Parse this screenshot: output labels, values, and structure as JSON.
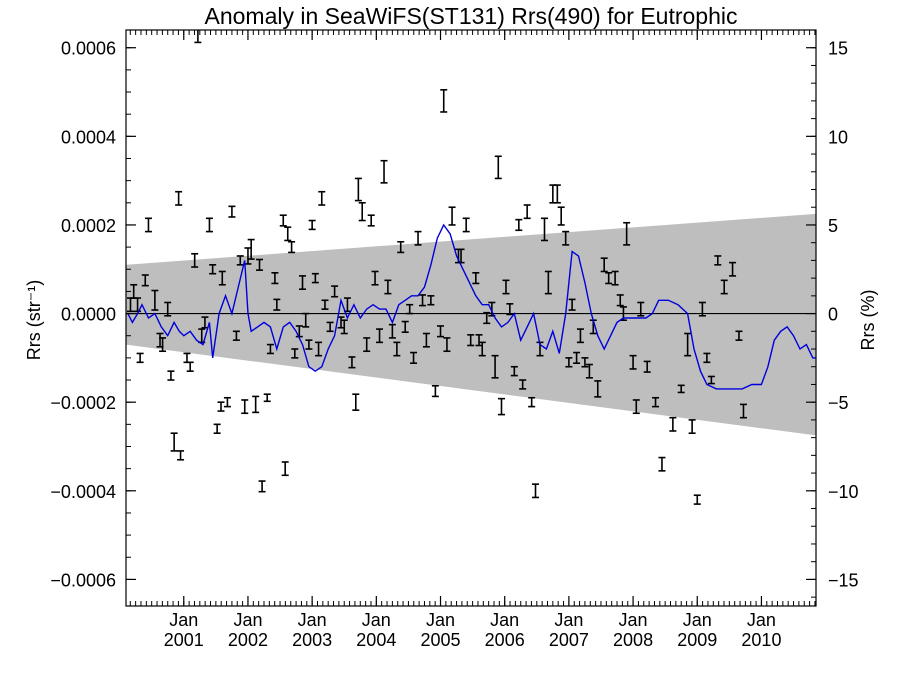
{
  "chart_data": {
    "type": "scatter",
    "title": "Anomaly in SeaWiFS(ST131) Rrs(490) for Eutrophic",
    "ylabel_left": "Rrs (str⁻¹)",
    "ylabel_right": "Rrs (%)",
    "xlim": [
      2000.1,
      2010.85
    ],
    "ylim": [
      -0.00066,
      0.00064
    ],
    "ylim_right_percent": [
      -16.5,
      16.0
    ],
    "y_ticks_left": [
      {
        "value": -0.0006,
        "label": "−0.0006"
      },
      {
        "value": -0.0004,
        "label": "−0.0004"
      },
      {
        "value": -0.0002,
        "label": "−0.0002"
      },
      {
        "value": 0,
        "label": "0.0000"
      },
      {
        "value": 0.0002,
        "label": "0.0002"
      },
      {
        "value": 0.0004,
        "label": "0.0004"
      },
      {
        "value": 0.0006,
        "label": "0.0006"
      }
    ],
    "y_ticks_right": [
      {
        "value": -15,
        "label": "−15"
      },
      {
        "value": -10,
        "label": "−10"
      },
      {
        "value": -5,
        "label": "−5"
      },
      {
        "value": 0,
        "label": "0"
      },
      {
        "value": 5,
        "label": "5"
      },
      {
        "value": 10,
        "label": "10"
      },
      {
        "value": 15,
        "label": "15"
      }
    ],
    "x_ticks": [
      {
        "value": 2001.0,
        "top": "Jan",
        "bottom": "2001"
      },
      {
        "value": 2002.0,
        "top": "Jan",
        "bottom": "2002"
      },
      {
        "value": 2003.0,
        "top": "Jan",
        "bottom": "2003"
      },
      {
        "value": 2004.0,
        "top": "Jan",
        "bottom": "2004"
      },
      {
        "value": 2005.0,
        "top": "Jan",
        "bottom": "2005"
      },
      {
        "value": 2006.0,
        "top": "Jan",
        "bottom": "2006"
      },
      {
        "value": 2007.0,
        "top": "Jan",
        "bottom": "2007"
      },
      {
        "value": 2008.0,
        "top": "Jan",
        "bottom": "2008"
      },
      {
        "value": 2009.0,
        "top": "Jan",
        "bottom": "2009"
      },
      {
        "value": 2010.0,
        "top": "Jan",
        "bottom": "2010"
      }
    ],
    "envelope": {
      "upper": [
        [
          2000.1,
          0.00011
        ],
        [
          2010.85,
          0.000225
        ]
      ],
      "lower": [
        [
          2000.1,
          -7e-05
        ],
        [
          2010.85,
          -0.000275
        ]
      ],
      "color": "#bebebe"
    },
    "zero_line": 0,
    "smoothed_line": {
      "color": "#0000dd",
      "points": [
        [
          2000.13,
          0.0
        ],
        [
          2000.2,
          -2e-05
        ],
        [
          2000.28,
          0.0
        ],
        [
          2000.35,
          2e-05
        ],
        [
          2000.45,
          -1e-05
        ],
        [
          2000.55,
          0.0
        ],
        [
          2000.65,
          -3e-05
        ],
        [
          2000.75,
          -5e-05
        ],
        [
          2000.85,
          -2e-05
        ],
        [
          2000.93,
          -4e-05
        ],
        [
          2001.0,
          -5e-05
        ],
        [
          2001.1,
          -4e-05
        ],
        [
          2001.2,
          -6e-05
        ],
        [
          2001.3,
          -7e-05
        ],
        [
          2001.4,
          -2e-05
        ],
        [
          2001.45,
          -0.0001
        ],
        [
          2001.55,
          0.0
        ],
        [
          2001.65,
          4e-05
        ],
        [
          2001.75,
          0.0
        ],
        [
          2001.85,
          6e-05
        ],
        [
          2001.95,
          0.00012
        ],
        [
          2002.0,
          0.0
        ],
        [
          2002.05,
          -4e-05
        ],
        [
          2002.15,
          -3e-05
        ],
        [
          2002.25,
          -2e-05
        ],
        [
          2002.35,
          -3e-05
        ],
        [
          2002.45,
          -8e-05
        ],
        [
          2002.55,
          -3e-05
        ],
        [
          2002.65,
          -2e-05
        ],
        [
          2002.75,
          -4e-05
        ],
        [
          2002.85,
          -7e-05
        ],
        [
          2002.95,
          -0.00012
        ],
        [
          2003.05,
          -0.00013
        ],
        [
          2003.15,
          -0.00012
        ],
        [
          2003.25,
          -8e-05
        ],
        [
          2003.35,
          -5e-05
        ],
        [
          2003.45,
          3e-05
        ],
        [
          2003.55,
          -1e-05
        ],
        [
          2003.65,
          2e-05
        ],
        [
          2003.75,
          -1e-05
        ],
        [
          2003.85,
          1e-05
        ],
        [
          2003.95,
          2e-05
        ],
        [
          2004.05,
          1e-05
        ],
        [
          2004.15,
          1e-05
        ],
        [
          2004.25,
          -2e-05
        ],
        [
          2004.35,
          2e-05
        ],
        [
          2004.45,
          3e-05
        ],
        [
          2004.55,
          4e-05
        ],
        [
          2004.65,
          4e-05
        ],
        [
          2004.75,
          6e-05
        ],
        [
          2004.85,
          0.00011
        ],
        [
          2004.95,
          0.00017
        ],
        [
          2005.05,
          0.0002
        ],
        [
          2005.15,
          0.00018
        ],
        [
          2005.25,
          0.00013
        ],
        [
          2005.35,
          0.0001
        ],
        [
          2005.45,
          7e-05
        ],
        [
          2005.55,
          4e-05
        ],
        [
          2005.65,
          2e-05
        ],
        [
          2005.75,
          2e-05
        ],
        [
          2005.85,
          -1e-05
        ],
        [
          2005.95,
          -3e-05
        ],
        [
          2006.05,
          -2e-05
        ],
        [
          2006.15,
          0.0
        ],
        [
          2006.25,
          -6e-05
        ],
        [
          2006.35,
          -3e-05
        ],
        [
          2006.45,
          0.0
        ],
        [
          2006.55,
          -7e-05
        ],
        [
          2006.65,
          -8e-05
        ],
        [
          2006.75,
          -4e-05
        ],
        [
          2006.85,
          -9e-05
        ],
        [
          2006.95,
          0.0
        ],
        [
          2007.05,
          0.00014
        ],
        [
          2007.15,
          0.00013
        ],
        [
          2007.25,
          7e-05
        ],
        [
          2007.35,
          0.0
        ],
        [
          2007.45,
          -5e-05
        ],
        [
          2007.55,
          -8e-05
        ],
        [
          2007.65,
          -5e-05
        ],
        [
          2007.75,
          -2e-05
        ],
        [
          2007.85,
          -1e-05
        ],
        [
          2007.95,
          -1e-05
        ],
        [
          2008.05,
          -1e-05
        ],
        [
          2008.2,
          -1e-05
        ],
        [
          2008.3,
          0.0
        ],
        [
          2008.4,
          3e-05
        ],
        [
          2008.55,
          3e-05
        ],
        [
          2008.7,
          2e-05
        ],
        [
          2008.85,
          0.0
        ],
        [
          2008.95,
          -8e-05
        ],
        [
          2009.05,
          -0.00013
        ],
        [
          2009.15,
          -0.00016
        ],
        [
          2009.3,
          -0.00017
        ],
        [
          2009.5,
          -0.00017
        ],
        [
          2009.7,
          -0.00017
        ],
        [
          2009.85,
          -0.00016
        ],
        [
          2010.0,
          -0.00016
        ],
        [
          2010.1,
          -0.00012
        ],
        [
          2010.2,
          -6e-05
        ],
        [
          2010.3,
          -4e-05
        ],
        [
          2010.4,
          -3e-05
        ],
        [
          2010.5,
          -5e-05
        ],
        [
          2010.6,
          -8e-05
        ],
        [
          2010.7,
          -7e-05
        ],
        [
          2010.8,
          -0.0001
        ],
        [
          2010.85,
          -0.0001
        ]
      ]
    },
    "error_bar_points": {
      "color": "#000000",
      "points": [
        [
          2000.17,
          2e-05,
          1.5e-05
        ],
        [
          2000.22,
          5e-05,
          1.5e-05
        ],
        [
          2000.28,
          2e-05,
          1.5e-05
        ],
        [
          2000.32,
          -0.0001,
          1e-05
        ],
        [
          2000.4,
          7.5e-05,
          1.2e-05
        ],
        [
          2000.45,
          0.0002,
          1.5e-05
        ],
        [
          2000.55,
          3e-05,
          2.2e-05
        ],
        [
          2000.63,
          -6e-05,
          1.5e-05
        ],
        [
          2000.67,
          -7e-05,
          1.5e-05
        ],
        [
          2000.75,
          1e-05,
          1.5e-05
        ],
        [
          2000.8,
          -0.00014,
          1e-05
        ],
        [
          2000.85,
          -0.00029,
          2e-05
        ],
        [
          2000.92,
          0.00026,
          1.5e-05
        ],
        [
          2000.95,
          -0.00032,
          1e-05
        ],
        [
          2001.05,
          -0.0001,
          1e-05
        ],
        [
          2001.1,
          -0.00012,
          1e-05
        ],
        [
          2001.17,
          0.00012,
          1.5e-05
        ],
        [
          2001.22,
          0.00063,
          1.8e-05
        ],
        [
          2001.28,
          -5e-05,
          1.5e-05
        ],
        [
          2001.33,
          -2e-05,
          1.2e-05
        ],
        [
          2001.4,
          0.0002,
          1.5e-05
        ],
        [
          2001.45,
          0.0001,
          1e-05
        ],
        [
          2001.52,
          -0.00026,
          1e-05
        ],
        [
          2001.58,
          -0.00021,
          1e-05
        ],
        [
          2001.6,
          8e-05,
          1.5e-05
        ],
        [
          2001.68,
          -0.0002,
          1e-05
        ],
        [
          2001.75,
          0.00023,
          1.2e-05
        ],
        [
          2001.82,
          -5e-05,
          1e-05
        ],
        [
          2001.88,
          0.00012,
          1e-05
        ],
        [
          2001.95,
          -0.00021,
          1.5e-05
        ],
        [
          2002.0,
          0.00013,
          1.8e-05
        ],
        [
          2002.05,
          0.000145,
          2.2e-05
        ],
        [
          2002.12,
          -0.000205,
          1.8e-05
        ],
        [
          2002.18,
          0.00011,
          1.2e-05
        ],
        [
          2002.22,
          -0.00039,
          1.2e-05
        ],
        [
          2002.3,
          -0.00019,
          8e-06
        ],
        [
          2002.35,
          -8e-05,
          1e-05
        ],
        [
          2002.42,
          8e-05,
          1.2e-05
        ],
        [
          2002.45,
          2e-05,
          1.2e-05
        ],
        [
          2002.55,
          0.00021,
          1.2e-05
        ],
        [
          2002.58,
          -0.00035,
          1.5e-05
        ],
        [
          2002.62,
          0.00018,
          1.5e-05
        ],
        [
          2002.68,
          0.00015,
          1.2e-05
        ],
        [
          2002.73,
          -9e-05,
          1e-05
        ],
        [
          2002.8,
          -4e-05,
          1.2e-05
        ],
        [
          2002.85,
          7e-05,
          1.5e-05
        ],
        [
          2002.9,
          -1.5e-05,
          1.5e-05
        ],
        [
          2002.95,
          -7e-05,
          1e-05
        ],
        [
          2003.0,
          0.0002,
          1e-05
        ],
        [
          2003.05,
          8e-05,
          1e-05
        ],
        [
          2003.1,
          -8e-05,
          1.5e-05
        ],
        [
          2003.15,
          0.00026,
          1.5e-05
        ],
        [
          2003.2,
          2e-05,
          1e-05
        ],
        [
          2003.28,
          -3e-05,
          1e-05
        ],
        [
          2003.35,
          5e-05,
          1.2e-05
        ],
        [
          2003.45,
          -2e-05,
          1.2e-05
        ],
        [
          2003.5,
          -3e-05,
          1.5e-05
        ],
        [
          2003.55,
          2e-05,
          1.5e-05
        ],
        [
          2003.62,
          -0.00011,
          1.2e-05
        ],
        [
          2003.68,
          -0.0002,
          1.8e-05
        ],
        [
          2003.72,
          0.00028,
          2.5e-05
        ],
        [
          2003.78,
          0.00023,
          2e-05
        ],
        [
          2003.85,
          -7e-05,
          1.5e-05
        ],
        [
          2003.92,
          0.00021,
          1.2e-05
        ],
        [
          2003.98,
          8e-05,
          1.5e-05
        ],
        [
          2004.05,
          -5e-05,
          1.5e-05
        ],
        [
          2004.12,
          0.00032,
          2.5e-05
        ],
        [
          2004.18,
          6e-05,
          1.5e-05
        ],
        [
          2004.25,
          -4e-05,
          1.5e-05
        ],
        [
          2004.32,
          -8e-05,
          1.5e-05
        ],
        [
          2004.38,
          0.00015,
          1.2e-05
        ],
        [
          2004.45,
          -3e-05,
          1.2e-05
        ],
        [
          2004.52,
          1e-05,
          1e-05
        ],
        [
          2004.58,
          -0.0001,
          1.2e-05
        ],
        [
          2004.65,
          0.00017,
          1.5e-05
        ],
        [
          2004.72,
          3e-05,
          1.2e-05
        ],
        [
          2004.78,
          -6e-05,
          1.5e-05
        ],
        [
          2004.85,
          3e-05,
          1e-05
        ],
        [
          2004.92,
          -0.000175,
          1.2e-05
        ],
        [
          2005.0,
          -4e-05,
          1.2e-05
        ],
        [
          2005.05,
          0.00048,
          2.5e-05
        ],
        [
          2005.1,
          -7e-05,
          1.5e-05
        ],
        [
          2005.18,
          0.00022,
          2e-05
        ],
        [
          2005.28,
          0.00013,
          1.5e-05
        ],
        [
          2005.32,
          0.00013,
          1.5e-05
        ],
        [
          2005.4,
          0.0002,
          1.5e-05
        ],
        [
          2005.47,
          -6e-05,
          1.2e-05
        ],
        [
          2005.55,
          8e-05,
          1.2e-05
        ],
        [
          2005.6,
          -6e-05,
          1.2e-05
        ],
        [
          2005.65,
          -8e-05,
          1.5e-05
        ],
        [
          2005.72,
          -1e-05,
          1.2e-05
        ],
        [
          2005.8,
          1e-05,
          1.5e-05
        ],
        [
          2005.85,
          -0.00012,
          2.5e-05
        ],
        [
          2005.9,
          0.00033,
          2.5e-05
        ],
        [
          2005.95,
          -0.00021,
          1.8e-05
        ],
        [
          2006.02,
          6e-05,
          1.5e-05
        ],
        [
          2006.08,
          1e-05,
          1.2e-05
        ],
        [
          2006.15,
          -0.00013,
          1e-05
        ],
        [
          2006.22,
          0.0002,
          1.2e-05
        ],
        [
          2006.28,
          -0.00016,
          1e-05
        ],
        [
          2006.35,
          0.00023,
          1.5e-05
        ],
        [
          2006.42,
          -0.0002,
          1e-05
        ],
        [
          2006.48,
          -0.0004,
          1.5e-05
        ],
        [
          2006.55,
          -8e-05,
          1.5e-05
        ],
        [
          2006.62,
          0.00019,
          2.5e-05
        ],
        [
          2006.68,
          7e-05,
          2.5e-05
        ],
        [
          2006.75,
          0.00027,
          2e-05
        ],
        [
          2006.82,
          0.00027,
          2e-05
        ],
        [
          2006.88,
          0.00022,
          2e-05
        ],
        [
          2006.95,
          0.00017,
          1.5e-05
        ],
        [
          2007.0,
          -0.00011,
          1e-05
        ],
        [
          2007.05,
          2e-05,
          1.2e-05
        ],
        [
          2007.12,
          -0.0001,
          1.2e-05
        ],
        [
          2007.18,
          -5e-05,
          1.5e-05
        ],
        [
          2007.25,
          -0.00011,
          1e-05
        ],
        [
          2007.32,
          -0.00013,
          1.5e-05
        ],
        [
          2007.38,
          -3e-05,
          1.5e-05
        ],
        [
          2007.45,
          -0.00017,
          1.8e-05
        ],
        [
          2007.55,
          0.00011,
          1.5e-05
        ],
        [
          2007.62,
          8e-05,
          1.2e-05
        ],
        [
          2007.72,
          8e-05,
          1.5e-05
        ],
        [
          2007.8,
          3e-05,
          1.2e-05
        ],
        [
          2007.85,
          -0.0,
          1.5e-05
        ],
        [
          2007.9,
          0.00018,
          2.5e-05
        ],
        [
          2008.0,
          -0.00011,
          1.5e-05
        ],
        [
          2008.05,
          -0.00021,
          1.5e-05
        ],
        [
          2008.12,
          1e-05,
          1.5e-05
        ],
        [
          2008.22,
          -0.00012,
          1.2e-05
        ],
        [
          2008.35,
          -0.0002,
          1e-05
        ],
        [
          2008.45,
          -0.00034,
          1.5e-05
        ],
        [
          2008.62,
          -0.00025,
          1.5e-05
        ],
        [
          2008.75,
          -0.00017,
          8e-06
        ],
        [
          2008.85,
          -7e-05,
          2.5e-05
        ],
        [
          2008.92,
          -0.000255,
          1.5e-05
        ],
        [
          2009.0,
          -0.00042,
          1e-05
        ],
        [
          2009.08,
          1e-05,
          1.5e-05
        ],
        [
          2009.15,
          -0.0001,
          1e-05
        ],
        [
          2009.22,
          -0.00015,
          8e-06
        ],
        [
          2009.32,
          0.00012,
          1e-05
        ],
        [
          2009.42,
          6e-05,
          1.5e-05
        ],
        [
          2009.55,
          0.0001,
          1.5e-05
        ],
        [
          2009.65,
          -5e-05,
          1e-05
        ],
        [
          2009.72,
          -0.00022,
          1.5e-05
        ]
      ]
    },
    "grid": false,
    "legend": "none"
  }
}
